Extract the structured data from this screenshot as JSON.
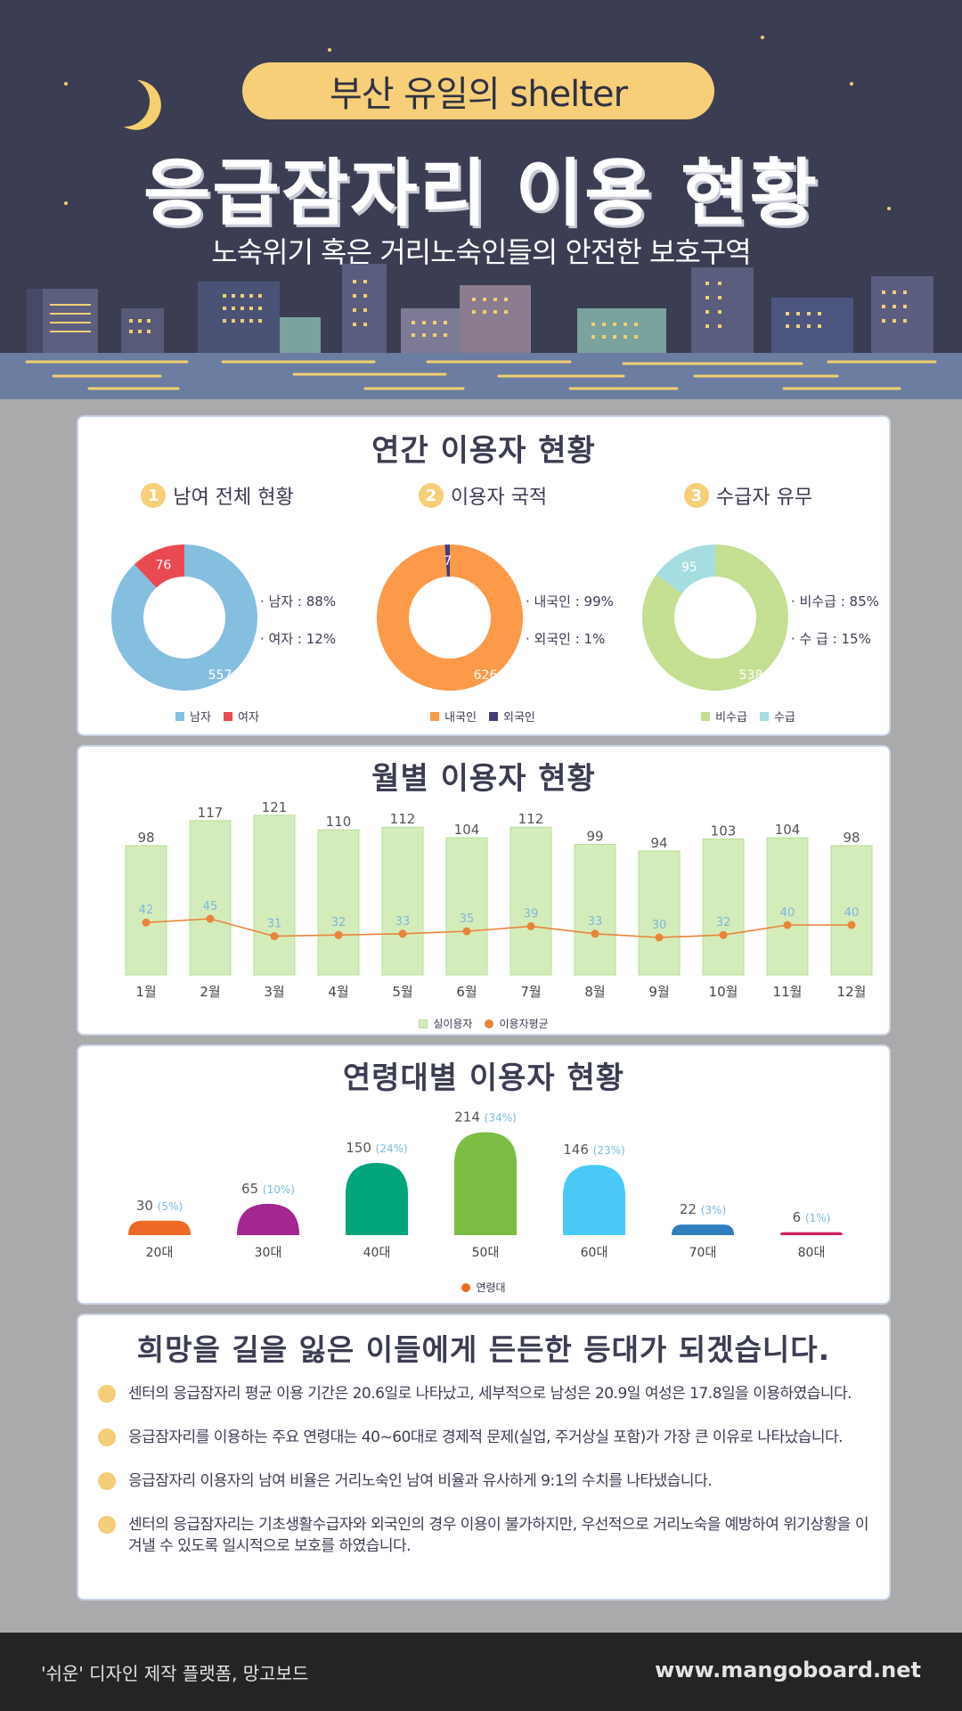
{
  "header": {
    "pill": "부산 유일의 shelter",
    "title": "응급잠자리 이용 현황",
    "subtitle": "노숙위기 혹은 거리노숙인들의 안전한 보호구역"
  },
  "annual": {
    "title": "연간 이용자 현황",
    "blocks": [
      {
        "num": "1",
        "heading": "남여 전체 현황",
        "lines": [
          "· 남자 : 88%",
          "· 여자 : 12%"
        ],
        "legend": [
          "남자",
          "여자"
        ]
      },
      {
        "num": "2",
        "heading": "이용자 국적",
        "lines": [
          "· 내국인 : 99%",
          "· 외국인 : 1%"
        ],
        "legend": [
          "내국인",
          "외국인"
        ]
      },
      {
        "num": "3",
        "heading": "수급자 유무",
        "lines": [
          "· 비수급 : 85%",
          "· 수   급 : 15%"
        ],
        "legend": [
          "비수급",
          "수급"
        ]
      }
    ]
  },
  "monthly": {
    "title": "월별 이용자 현황",
    "legend": [
      "실이용자",
      "이용자평균"
    ]
  },
  "age": {
    "title": "연령대별 이용자 현황",
    "legend": "연령대"
  },
  "conclusion": {
    "title": "희망을 길을 잃은 이들에게 든든한 등대가 되겠습니다.",
    "items": [
      "센터의 응급잠자리 평균 이용 기간은 20.6일로 나타났고, 세부적으로 남성은 20.9일 여성은 17.8일을 이용하였습니다.",
      "응급잠자리를 이용하는 주요 연령대는 40~60대로 경제적 문제(실업, 주거상실 포함)가 가장 큰 이유로 나타났습니다.",
      "응급잠자리 이용자의 남여 비율은 거리노숙인 남여 비율과 유사하게 9:1의 수치를 나타냈습니다.",
      "센터의 응급잠자리는 기초생활수급자와 외국인의 경우 이용이 불가하지만, 우선적으로 거리노숙을 예방하여 위기상황을 이겨낼 수 있도록 일시적으로 보호를 하였습니다."
    ]
  },
  "footer": {
    "left": "'쉬운' 디자인 제작 플랫폼, 망고보드",
    "right": "www.mangoboard.net"
  },
  "colors": {
    "male": "#85bfe0",
    "female": "#e94a52",
    "domestic": "#fc9a4a",
    "foreign": "#443d7a",
    "nonrecipient": "#c5df92",
    "recipient": "#a5dde0",
    "bar": "#d4ecb9",
    "line": "#e9843a"
  },
  "chart_data": [
    {
      "type": "pie",
      "title": "남여 전체 현황",
      "categories": [
        "남자",
        "여자"
      ],
      "values": [
        557,
        76
      ],
      "colors": [
        "#85bfe0",
        "#e94a52"
      ]
    },
    {
      "type": "pie",
      "title": "이용자 국적",
      "categories": [
        "내국인",
        "외국인"
      ],
      "values": [
        626,
        7
      ],
      "colors": [
        "#fc9a4a",
        "#443d7a"
      ]
    },
    {
      "type": "pie",
      "title": "수급자 유무",
      "categories": [
        "비수급",
        "수급"
      ],
      "values": [
        538,
        95
      ],
      "colors": [
        "#c5df92",
        "#a5dde0"
      ]
    },
    {
      "type": "bar",
      "title": "월별 이용자 현황",
      "categories": [
        "1월",
        "2월",
        "3월",
        "4월",
        "5월",
        "6월",
        "7월",
        "8월",
        "9월",
        "10월",
        "11월",
        "12월"
      ],
      "series": [
        {
          "name": "실이용자",
          "type": "bar",
          "values": [
            98,
            117,
            121,
            110,
            112,
            104,
            112,
            99,
            94,
            103,
            104,
            98
          ]
        },
        {
          "name": "이용자평균",
          "type": "line",
          "values": [
            42,
            45,
            31,
            32,
            33,
            35,
            39,
            33,
            30,
            32,
            40,
            40
          ]
        }
      ]
    },
    {
      "type": "bar",
      "title": "연령대별 이용자 현황",
      "categories": [
        "20대",
        "30대",
        "40대",
        "50대",
        "60대",
        "70대",
        "80대"
      ],
      "values": [
        30,
        65,
        150,
        214,
        146,
        22,
        6
      ],
      "percent_labels": [
        "(5%)",
        "(10%)",
        "(24%)",
        "(34%)",
        "(23%)",
        "(3%)",
        "(1%)"
      ],
      "colors": [
        "#ec6a25",
        "#a3278f",
        "#00a57c",
        "#7bbd43",
        "#4ac9f6",
        "#2f7fbf",
        "#d31f5e"
      ],
      "series_name": "연령대"
    }
  ]
}
